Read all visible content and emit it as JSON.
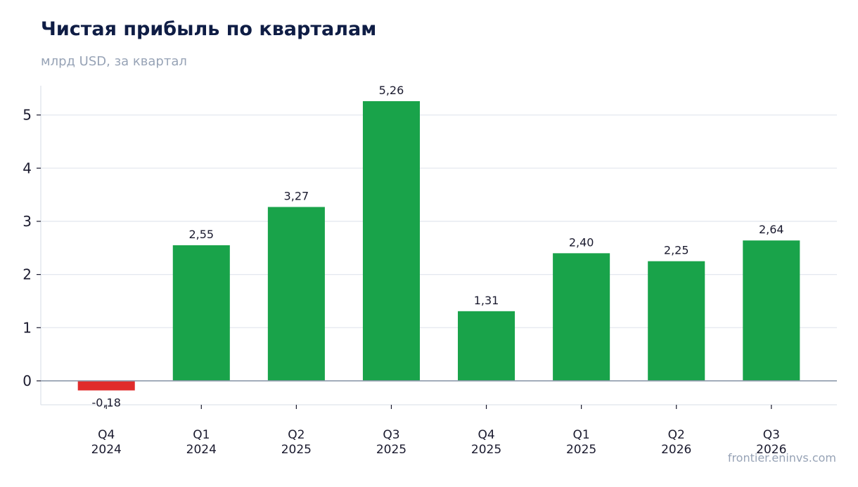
{
  "title": "Чистая прибыль по кварталам",
  "subtitle": "млрд USD, за квартал",
  "source": "frontier.eninvs.com",
  "colors": {
    "positive": "#19a34a",
    "negative": "#e02b2b",
    "grid": "#e4e8ef",
    "baseline": "#8e9aab",
    "axis": "#dfe3ea"
  },
  "chart_data": {
    "type": "bar",
    "categories": [
      [
        "Q4",
        "2024"
      ],
      [
        "Q1",
        "2024"
      ],
      [
        "Q2",
        "2025"
      ],
      [
        "Q3",
        "2025"
      ],
      [
        "Q4",
        "2025"
      ],
      [
        "Q1",
        "2025"
      ],
      [
        "Q2",
        "2026"
      ],
      [
        "Q3",
        "2026"
      ]
    ],
    "values": [
      -0.18,
      2.55,
      3.27,
      5.26,
      1.31,
      2.4,
      2.25,
      2.64
    ],
    "value_labels": [
      "-0,18",
      "2,55",
      "3,27",
      "5,26",
      "1,31",
      "2,40",
      "2,25",
      "2,64"
    ],
    "yticks": [
      0,
      1,
      2,
      3,
      4,
      5
    ],
    "ylim": [
      -0.45,
      5.55
    ],
    "grid": true,
    "legend": "none"
  }
}
